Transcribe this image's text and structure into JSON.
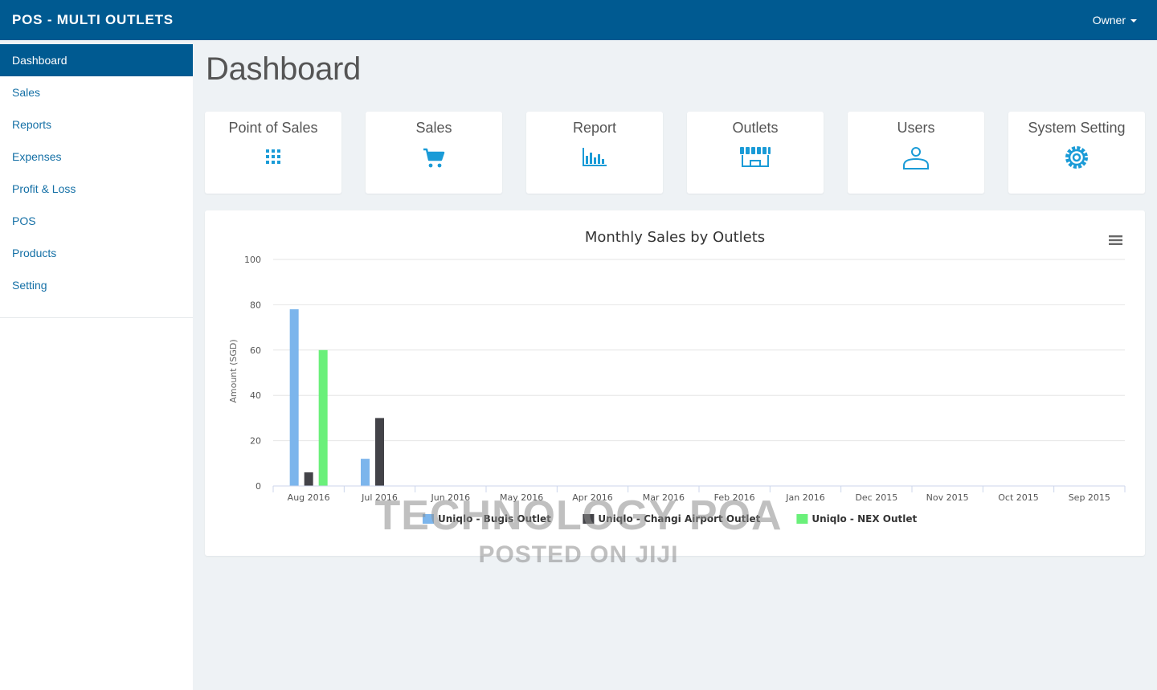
{
  "app": {
    "title": "POS - MULTI OUTLETS",
    "user_menu": "Owner"
  },
  "sidebar": {
    "items": [
      {
        "label": "Dashboard",
        "active": true
      },
      {
        "label": "Sales"
      },
      {
        "label": "Reports"
      },
      {
        "label": "Expenses"
      },
      {
        "label": "Profit & Loss"
      },
      {
        "label": "POS"
      },
      {
        "label": "Products"
      },
      {
        "label": "Setting"
      }
    ]
  },
  "page": {
    "title": "Dashboard"
  },
  "tiles": [
    {
      "label": "Point of Sales",
      "icon": "grid-icon"
    },
    {
      "label": "Sales",
      "icon": "cart-icon"
    },
    {
      "label": "Report",
      "icon": "bar-chart-icon"
    },
    {
      "label": "Outlets",
      "icon": "storefront-icon"
    },
    {
      "label": "Users",
      "icon": "user-icon"
    },
    {
      "label": "System Setting",
      "icon": "gear-icon"
    }
  ],
  "colors": {
    "navbar": "#005a91",
    "accent": "#1a9bd7",
    "background": "#eef2f5"
  },
  "chart_data": {
    "type": "bar",
    "title": "Monthly Sales by Outlets",
    "ylabel": "Amount (SGD)",
    "xlabel": "",
    "ylim": [
      0,
      100
    ],
    "yticks": [
      0,
      20,
      40,
      60,
      80,
      100
    ],
    "grid": true,
    "legend": "bottom-center",
    "categories": [
      "Aug 2016",
      "Jul 2016",
      "Jun 2016",
      "May 2016",
      "Apr 2016",
      "Mar 2016",
      "Feb 2016",
      "Jan 2016",
      "Dec 2015",
      "Nov 2015",
      "Oct 2015",
      "Sep 2015"
    ],
    "series": [
      {
        "name": "Uniqlo - Bugis Outlet",
        "color": "#7cb5ec",
        "values": [
          78,
          12,
          0,
          0,
          0,
          0,
          0,
          0,
          0,
          0,
          0,
          0
        ]
      },
      {
        "name": "Uniqlo - Changi Airport Outlet",
        "color": "#434348",
        "values": [
          6,
          30,
          0,
          0,
          0,
          0,
          0,
          0,
          0,
          0,
          0,
          0
        ]
      },
      {
        "name": "Uniqlo - NEX Outlet",
        "color": "#6af07a",
        "values": [
          60,
          0,
          0,
          0,
          0,
          0,
          0,
          0,
          0,
          0,
          0,
          0
        ]
      }
    ],
    "menu_icon": "hamburger-menu-icon"
  },
  "watermark": {
    "line1": "TECHNOLOGY POA",
    "line2": "POSTED ON JIJI"
  }
}
